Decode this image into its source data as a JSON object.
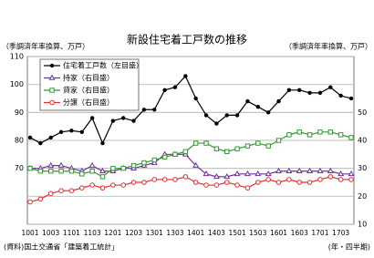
{
  "chart_data": {
    "type": "line",
    "title": "新設住宅着工戸数の推移",
    "y_label": "（季調済年率換算、万戸）",
    "y2_label": "（季調済年率換算、万戸）",
    "source": "(資料)国土交通省「建築着工統計」",
    "x_label": "(年・四半期)",
    "categories": [
      "1001",
      null,
      "1003",
      null,
      "1101",
      null,
      "1103",
      null,
      "1201",
      null,
      "1203",
      null,
      "1301",
      null,
      "1303",
      null,
      "1401",
      null,
      "1403",
      null,
      "1501",
      null,
      "1503",
      null,
      "1601",
      null,
      "1603",
      null,
      "1701",
      null,
      "1703",
      null
    ],
    "ylim": [
      50,
      110
    ],
    "yticks": [
      70,
      80,
      90,
      100,
      110
    ],
    "y2lim": [
      10,
      70
    ],
    "y2ticks": [
      10,
      20,
      30,
      40,
      50
    ],
    "grid": true,
    "legend": "upper left",
    "series": [
      {
        "name": "住宅着工戸数（左目盛）",
        "color": "#000000",
        "marker": "filled-circle",
        "values": [
          81,
          79,
          81,
          83,
          83.5,
          83,
          88,
          79,
          87,
          88,
          87,
          91,
          91,
          98,
          99,
          103,
          95,
          89,
          86,
          89,
          89,
          94,
          92,
          90,
          94,
          98,
          98,
          97,
          97,
          99,
          96,
          95
        ]
      },
      {
        "name": "持家（右目盛）",
        "color": "#7030a0",
        "marker": "triangle",
        "axis": "y2",
        "values": [
          30,
          30,
          31,
          31,
          30,
          29,
          31,
          29,
          29,
          30,
          30,
          31,
          32,
          35,
          35,
          35,
          31,
          28,
          27,
          27,
          28,
          28,
          28,
          28,
          29,
          29,
          29,
          29,
          29,
          29,
          28,
          28
        ]
      },
      {
        "name": "貸家（右目盛）",
        "color": "#339933",
        "marker": "square",
        "axis": "y2",
        "values": [
          30,
          29,
          29,
          29,
          29,
          28,
          29,
          27,
          30,
          30,
          31,
          32,
          33,
          34,
          35,
          36,
          39,
          39,
          37,
          36,
          37,
          38,
          39,
          38,
          40,
          42,
          43,
          42,
          43,
          43,
          42,
          41
        ]
      },
      {
        "name": "分譲（右目盛）",
        "color": "#e03030",
        "marker": "circle",
        "axis": "y2",
        "values": [
          18,
          19,
          21,
          22,
          22,
          23,
          24,
          23,
          24,
          24,
          25,
          25,
          26,
          26,
          26,
          27,
          25,
          24,
          24,
          25,
          24,
          23,
          25,
          26,
          25,
          26,
          25,
          25,
          26,
          27,
          26,
          26
        ]
      }
    ]
  }
}
